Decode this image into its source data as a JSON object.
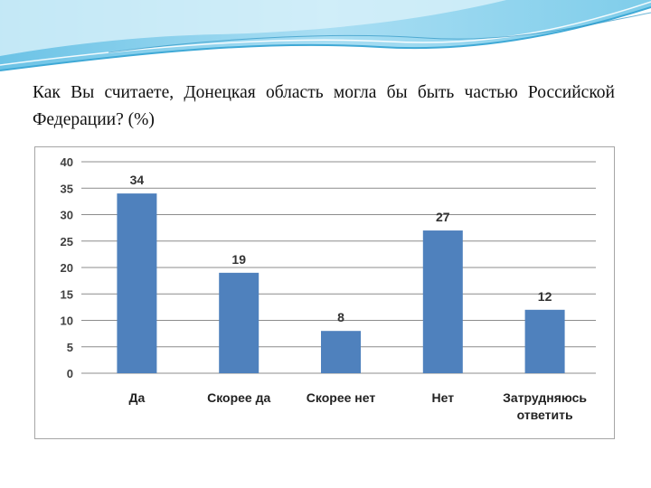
{
  "slide": {
    "title": "Как Вы считаете, Донецкая область могла бы быть частью Российской Федерации? (%)"
  },
  "colors": {
    "bar": "#4f81bd",
    "grid": "#8c8c8c",
    "text": "#404040",
    "header_wave_dark": "#3fa9d6",
    "header_wave_light": "#bfe6f5"
  },
  "chart_data": {
    "type": "bar",
    "categories": [
      "Да",
      "Скорее да",
      "Скорее нет",
      "Нет",
      "Затрудняюсь ответить"
    ],
    "values": [
      34,
      19,
      8,
      27,
      12
    ],
    "data_labels": [
      "34",
      "19",
      "8",
      "27",
      "12"
    ],
    "ylim": [
      0,
      40
    ],
    "yticks": [
      "0",
      "5",
      "10",
      "15",
      "20",
      "25",
      "30",
      "35",
      "40"
    ],
    "grid": true,
    "legend": false
  }
}
